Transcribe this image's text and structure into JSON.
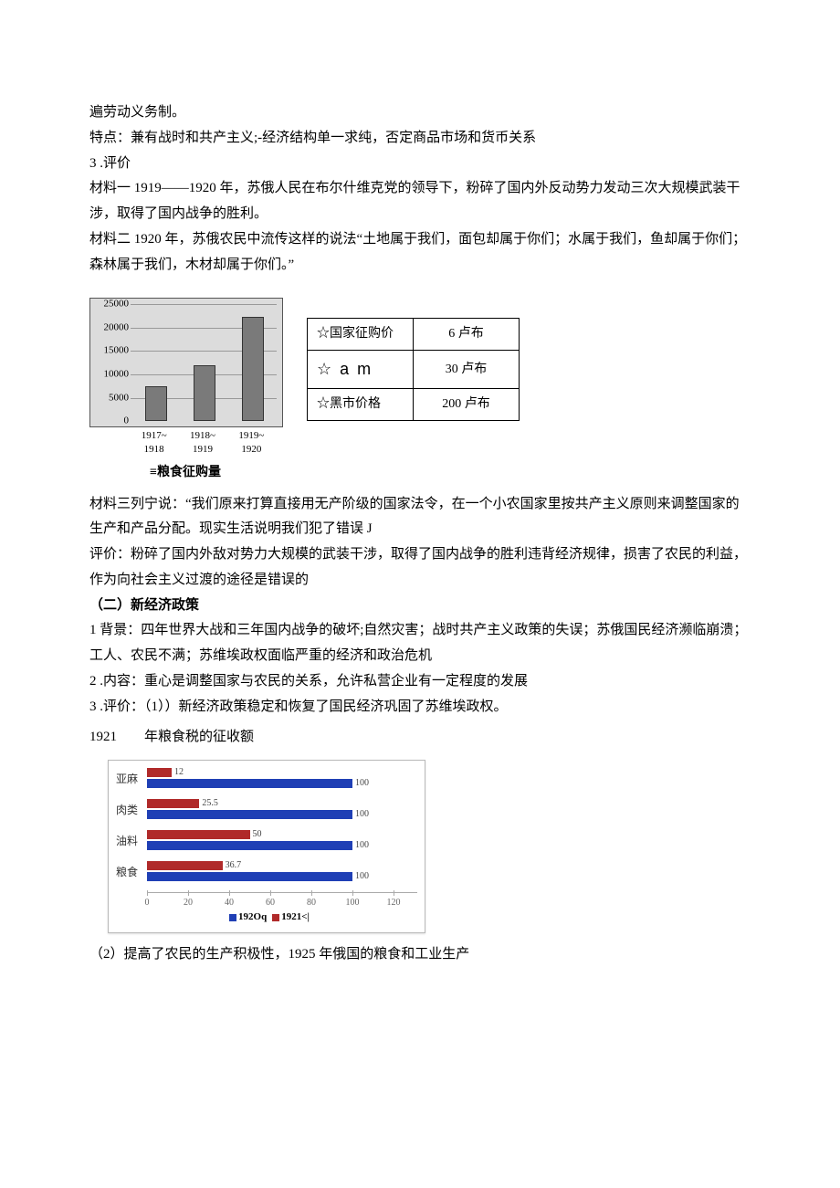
{
  "p1": "遍劳动义务制。",
  "p2": "特点：兼有战时和共产主义;-经济结构单一求纯，否定商品市场和货币关系",
  "sec1_num": "3  .评价",
  "mat1": "材料一 1919——1920 年，苏俄人民在布尔什维克党的领导下，粉碎了国内外反动势力发动三次大规模武装干涉，取得了国内战争的胜利。",
  "mat2": "材料二 1920 年，苏俄农民中流传这样的说法“土地属于我们，面包却属于你们；水属于我们，鱼却属于你们；森林属于我们，木材却属于你们。”",
  "chart1": {
    "type": "bar",
    "ylim": [
      0,
      25000
    ],
    "yticks": [
      0,
      5000,
      10000,
      15000,
      20000,
      25000
    ],
    "categories": [
      {
        "line1": "1917~",
        "line2": "1918"
      },
      {
        "line1": "1918~",
        "line2": "1919"
      },
      {
        "line1": "1919~",
        "line2": "1920"
      }
    ],
    "values": [
      7000,
      11500,
      22000
    ],
    "bar_color": "#7a7a7a",
    "bg_color": "#dcdcdc",
    "caption": "≡粮食征购量"
  },
  "price_table": {
    "rows": [
      {
        "label": "☆国家征购价",
        "value": "6 卢布",
        "cls": ""
      },
      {
        "label": "☆ a m",
        "value": "30 卢布",
        "cls": "am-row"
      },
      {
        "label": "☆黑市价格",
        "value": "200 卢布",
        "cls": ""
      }
    ]
  },
  "mat3": "材料三列宁说：“我们原来打算直接用无产阶级的国家法令，在一个小农国家里按共产主义原则来调整国家的生产和产品分配。现实生活说明我们犯了错误 J",
  "eval1": "评价：粉碎了国内外敌对势力大规模的武装干涉，取得了国内战争的胜利违背经济规律，损害了农民的利益，作为向社会主义过渡的途径是错误的",
  "sec2_title": "（二）新经济政策",
  "sec2_1": "1 背景：四年世界大战和三年国内战争的破坏;自然灾害；战时共产主义政策的失误；苏俄国民经济濒临崩溃；工人、农民不满；苏维埃政权面临严重的经济和政治危机",
  "sec2_2": "2  .内容：重心是调整国家与农民的关系，允许私营企业有一定程度的发展",
  "sec2_3": "3  .评价：（1））新经济政策稳定和恢复了国民经济巩固了苏维埃政权。",
  "year_line_year": "1921",
  "year_line_txt": "年粮食税的征收额",
  "chart2": {
    "type": "hbar",
    "colors": {
      "a": "#b02a2a",
      "b": "#1f3fb5"
    },
    "max": 120,
    "ticks": [
      0,
      20,
      40,
      60,
      80,
      100,
      120
    ],
    "rows": [
      {
        "cat": "亚麻",
        "a": 12,
        "b": 100,
        "alabel": "12"
      },
      {
        "cat": "肉类",
        "a": 25.5,
        "b": 100,
        "alabel": "25.5"
      },
      {
        "cat": "油料",
        "a": 50,
        "b": 100,
        "alabel": "50"
      },
      {
        "cat": "粮食",
        "a": 36.7,
        "b": 100,
        "alabel": "36.7"
      }
    ],
    "legend_a": "192Oq",
    "legend_b": "1921<|"
  },
  "p_last": "（2）提高了农民的生产积极性，1925 年俄国的粮食和工业生产"
}
